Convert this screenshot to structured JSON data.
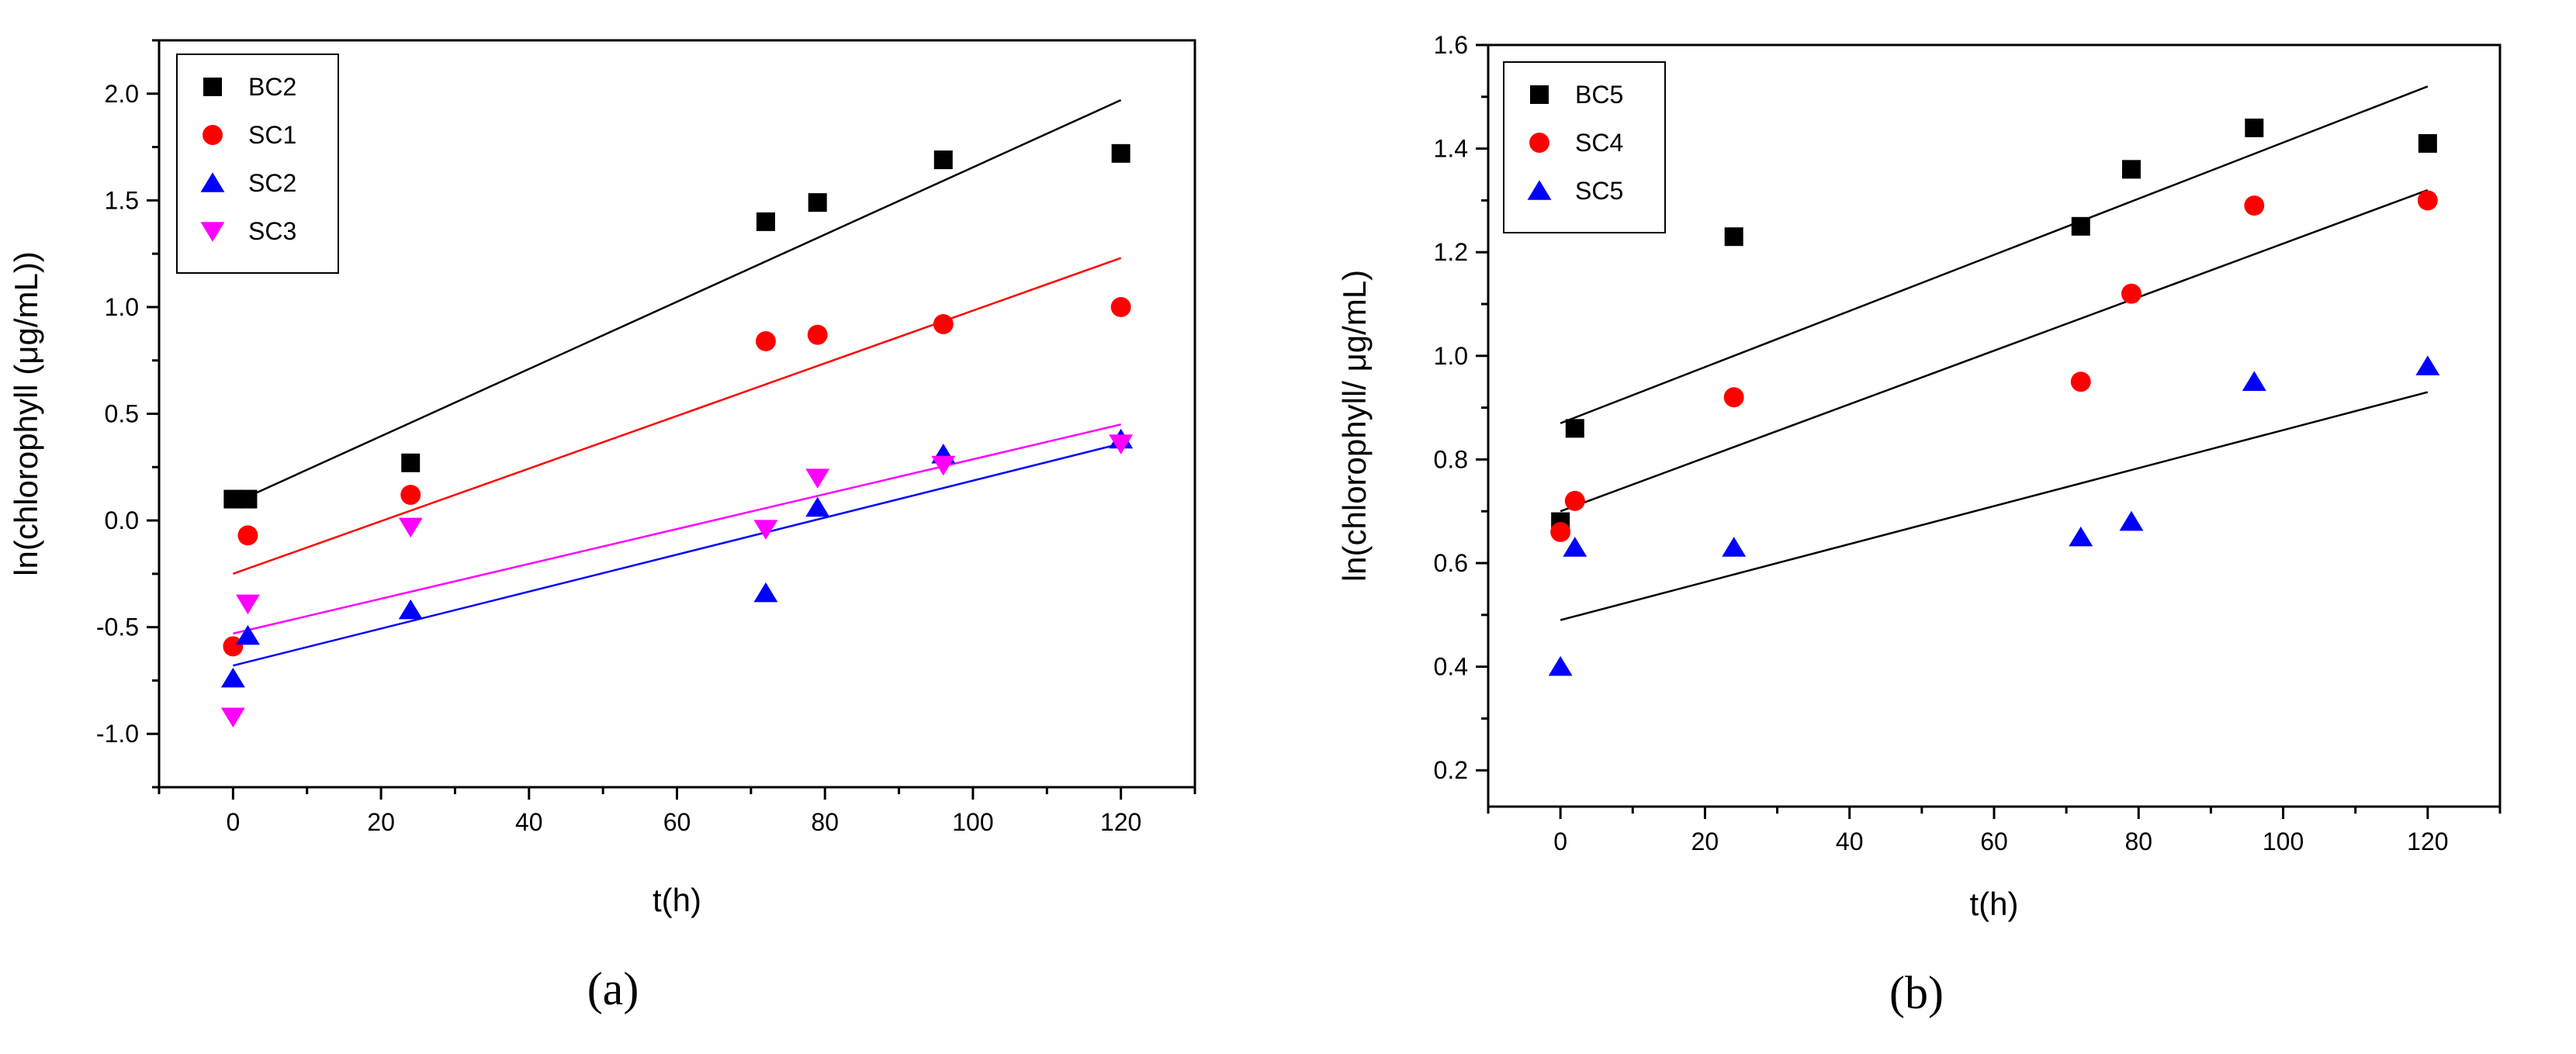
{
  "chart_data": [
    {
      "type": "scatter",
      "panel_label": "(a)",
      "title": "",
      "xlabel": "t(h)",
      "ylabel": "ln(chlorophyll (μg/mL))",
      "xlim": [
        -10,
        130
      ],
      "ylim": [
        -1.25,
        2.25
      ],
      "xticks": [
        0,
        20,
        40,
        60,
        80,
        100,
        120
      ],
      "xtick_labels": [
        "0",
        "20",
        "40",
        "60",
        "80",
        "100",
        "120"
      ],
      "yticks": [
        -1.0,
        -0.5,
        0.0,
        0.5,
        1.0,
        1.5,
        2.0
      ],
      "ytick_labels": [
        "-1.0",
        "-0.5",
        "0.0",
        "0.5",
        "1.0",
        "1.5",
        "2.0"
      ],
      "legend_position": "top-left",
      "series": [
        {
          "name": "BC2",
          "marker": "square",
          "color": "#000000",
          "line_color": "#000000",
          "x": [
            0,
            2,
            24,
            72,
            79,
            96,
            120
          ],
          "y": [
            0.1,
            0.1,
            0.27,
            1.4,
            1.49,
            1.69,
            1.72
          ],
          "fit": {
            "x": [
              0,
              120
            ],
            "y": [
              0.08,
              1.97
            ]
          }
        },
        {
          "name": "SC1",
          "marker": "circle",
          "color": "#ff0000",
          "line_color": "#ff0000",
          "x": [
            0,
            2,
            24,
            72,
            79,
            96,
            120
          ],
          "y": [
            -0.59,
            -0.07,
            0.12,
            0.84,
            0.87,
            0.92,
            1.0
          ],
          "fit": {
            "x": [
              0,
              120
            ],
            "y": [
              -0.25,
              1.23
            ]
          }
        },
        {
          "name": "SC2",
          "marker": "triangle-up",
          "color": "#0000ff",
          "line_color": "#0000ff",
          "x": [
            0,
            2,
            24,
            72,
            79,
            96,
            120
          ],
          "y": [
            -0.74,
            -0.54,
            -0.42,
            -0.34,
            0.06,
            0.31,
            0.38
          ],
          "fit": {
            "x": [
              0,
              120
            ],
            "y": [
              -0.68,
              0.36
            ]
          }
        },
        {
          "name": "SC3",
          "marker": "triangle-down",
          "color": "#ff00ff",
          "line_color": "#ff00ff",
          "x": [
            0,
            2,
            24,
            72,
            79,
            96,
            120
          ],
          "y": [
            -0.92,
            -0.39,
            -0.03,
            -0.04,
            0.2,
            0.26,
            0.36
          ],
          "fit": {
            "x": [
              0,
              120
            ],
            "y": [
              -0.53,
              0.45
            ]
          }
        }
      ]
    },
    {
      "type": "scatter",
      "panel_label": "(b)",
      "title": "",
      "xlabel": "t(h)",
      "ylabel": "ln(chlorophyll/ μg/mL)",
      "xlim": [
        -10,
        130
      ],
      "ylim": [
        0.13,
        1.6
      ],
      "xticks": [
        0,
        20,
        40,
        60,
        80,
        100,
        120
      ],
      "xtick_labels": [
        "0",
        "20",
        "40",
        "60",
        "80",
        "100",
        "120"
      ],
      "yticks": [
        0.2,
        0.4,
        0.6,
        0.8,
        1.0,
        1.2,
        1.4,
        1.6
      ],
      "ytick_labels": [
        "0.2",
        "0.4",
        "0.6",
        "0.8",
        "1.0",
        "1.2",
        "1.4",
        "1.6"
      ],
      "legend_position": "top-left",
      "series": [
        {
          "name": "BC5",
          "marker": "square",
          "color": "#000000",
          "line_color": "#000000",
          "x": [
            0,
            2,
            24,
            72,
            79,
            96,
            120
          ],
          "y": [
            0.68,
            0.86,
            1.23,
            1.25,
            1.36,
            1.44,
            1.41
          ],
          "fit": {
            "x": [
              0,
              120
            ],
            "y": [
              0.87,
              1.52
            ]
          }
        },
        {
          "name": "SC4",
          "marker": "circle",
          "color": "#ff0000",
          "line_color": "#000000",
          "x": [
            0,
            2,
            24,
            72,
            79,
            96,
            120
          ],
          "y": [
            0.66,
            0.72,
            0.92,
            0.95,
            1.12,
            1.29,
            1.3
          ],
          "fit": {
            "x": [
              0,
              120
            ],
            "y": [
              0.7,
              1.32
            ]
          }
        },
        {
          "name": "SC5",
          "marker": "triangle-up",
          "color": "#0000ff",
          "line_color": "#000000",
          "x": [
            0,
            2,
            24,
            72,
            79,
            96,
            120
          ],
          "y": [
            0.4,
            0.63,
            0.63,
            0.65,
            0.68,
            0.95,
            0.98
          ],
          "fit": {
            "x": [
              0,
              120
            ],
            "y": [
              0.49,
              0.93
            ]
          }
        }
      ]
    }
  ]
}
